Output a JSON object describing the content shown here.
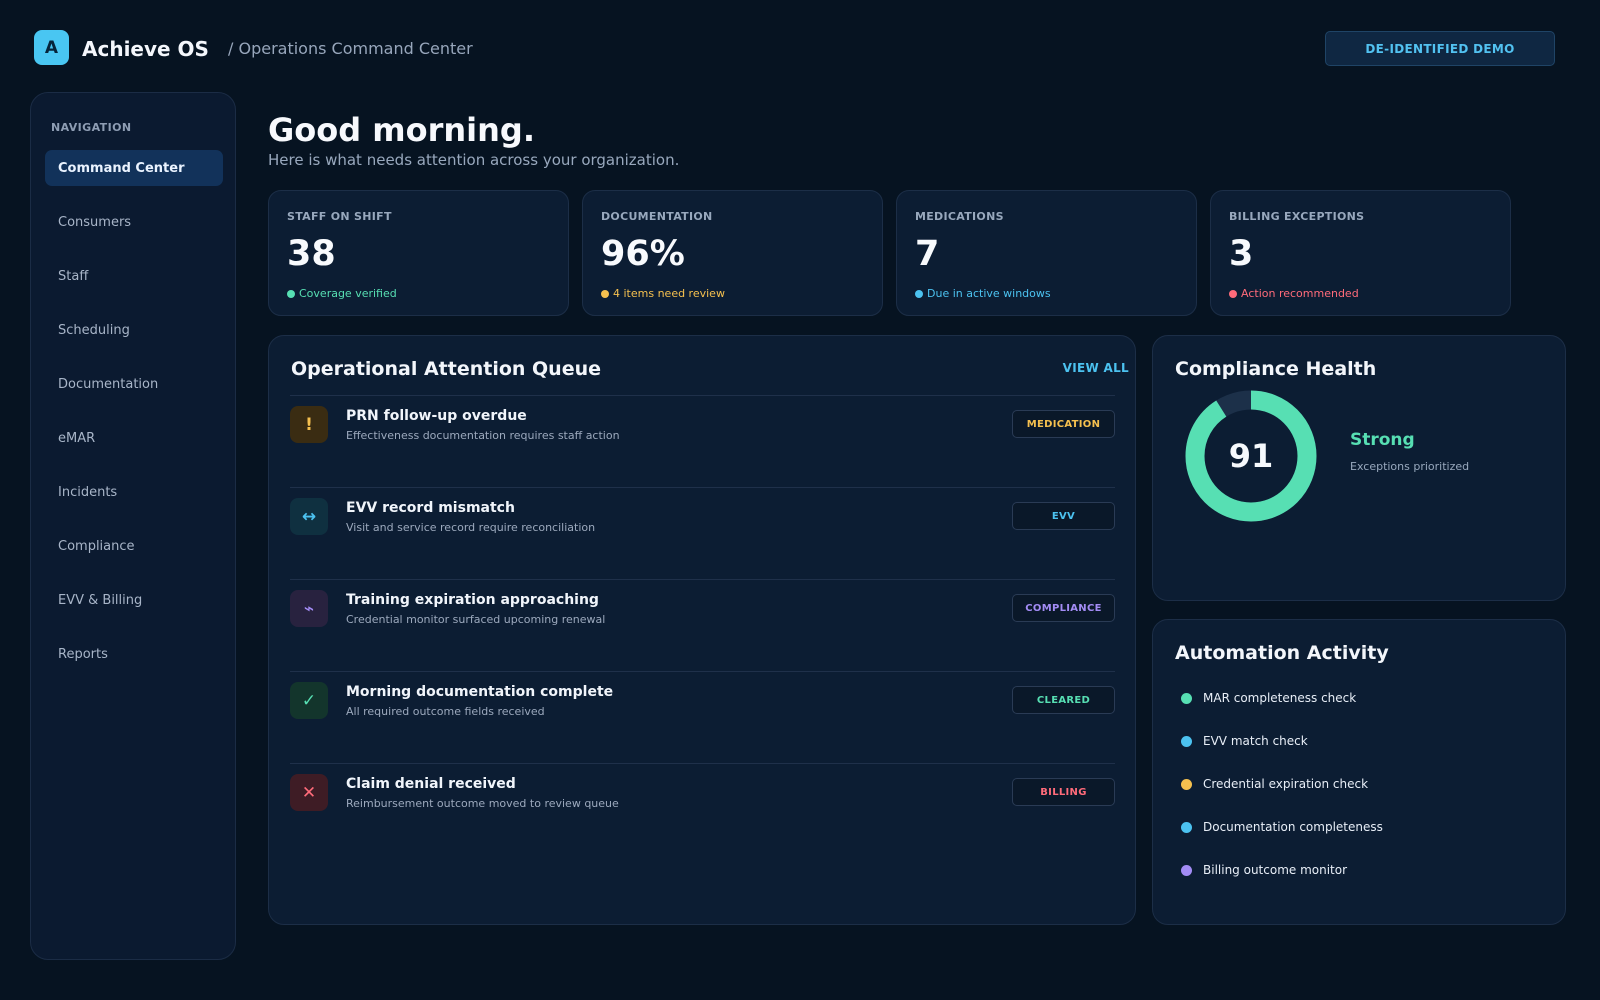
{
  "header": {
    "logo_letter": "A",
    "app_name": "Achieve OS",
    "breadcrumb": "/ Operations Command Center",
    "badge": "DE-IDENTIFIED DEMO"
  },
  "sidebar": {
    "heading": "NAVIGATION",
    "items": [
      {
        "label": "Command Center",
        "active": true
      },
      {
        "label": "Consumers"
      },
      {
        "label": "Staff"
      },
      {
        "label": "Scheduling"
      },
      {
        "label": "Documentation"
      },
      {
        "label": "eMAR"
      },
      {
        "label": "Incidents"
      },
      {
        "label": "Compliance"
      },
      {
        "label": "EVV & Billing"
      },
      {
        "label": "Reports"
      }
    ]
  },
  "main": {
    "greeting": "Good morning.",
    "subtitle": "Here is what needs attention across your organization."
  },
  "stats": [
    {
      "label": "STAFF ON SHIFT",
      "value": "38",
      "note": "Coverage verified",
      "color": "#57dfb3"
    },
    {
      "label": "DOCUMENTATION",
      "value": "96%",
      "note": "4 items need review",
      "color": "#f5c04f"
    },
    {
      "label": "MEDICATIONS",
      "value": "7",
      "note": "Due in active windows",
      "color": "#4cc2f0"
    },
    {
      "label": "BILLING EXCEPTIONS",
      "value": "3",
      "note": "Action recommended",
      "color": "#ff6b7a"
    }
  ],
  "queue": {
    "title": "Operational Attention Queue",
    "view_all": "VIEW ALL",
    "items": [
      {
        "icon": "!",
        "icon_name": "alert-icon",
        "title": "PRN follow-up overdue",
        "desc": "Effectiveness documentation requires staff action",
        "tag": "MEDICATION",
        "color": "#f5c04f",
        "bg": "#3a2c12"
      },
      {
        "icon": "↔",
        "icon_name": "swap-arrows-icon",
        "title": "EVV record mismatch",
        "desc": "Visit and service record require reconciliation",
        "tag": "EVV",
        "color": "#4cc2f0",
        "bg": "#0f3040"
      },
      {
        "icon": "⌁",
        "icon_name": "pulse-icon",
        "title": "Training expiration approaching",
        "desc": "Credential monitor surfaced upcoming renewal",
        "tag": "COMPLIANCE",
        "color": "#a38cf5",
        "bg": "#28223f"
      },
      {
        "icon": "✓",
        "icon_name": "check-icon",
        "title": "Morning documentation complete",
        "desc": "All required outcome fields received",
        "tag": "CLEARED",
        "color": "#57dfb3",
        "bg": "#13352c"
      },
      {
        "icon": "✕",
        "icon_name": "close-icon",
        "title": "Claim denial received",
        "desc": "Reimbursement outcome moved to review queue",
        "tag": "BILLING",
        "color": "#ff6b7a",
        "bg": "#3e1c25"
      }
    ]
  },
  "compliance": {
    "title": "Compliance Health",
    "score": "91",
    "score_fraction": 0.91,
    "status": "Strong",
    "note": "Exceptions prioritized",
    "color": "#57dfb3"
  },
  "automation": {
    "title": "Automation Activity",
    "items": [
      {
        "label": "MAR completeness check",
        "color": "#57dfb3"
      },
      {
        "label": "EVV match check",
        "color": "#4cc2f0"
      },
      {
        "label": "Credential expiration check",
        "color": "#f5c04f"
      },
      {
        "label": "Documentation completeness",
        "color": "#4cc2f0"
      },
      {
        "label": "Billing outcome monitor",
        "color": "#a38cf5"
      }
    ]
  }
}
